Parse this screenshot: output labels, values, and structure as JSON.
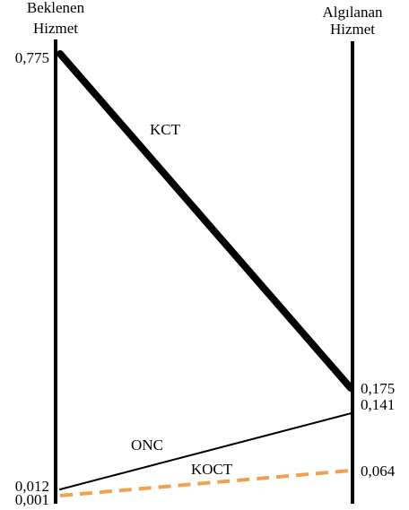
{
  "chart_data": {
    "type": "line",
    "left_axis": {
      "title_lines": [
        "Beklenen",
        "Hizmet"
      ]
    },
    "right_axis": {
      "title_lines": [
        "Algılanan",
        "Hizmet"
      ]
    },
    "series": [
      {
        "name": "KCT",
        "left_value": 0.775,
        "right_value": 0.175,
        "left_label": "0,775",
        "right_label": "0,175",
        "color": "#000000",
        "style": "solid",
        "weight": "thick"
      },
      {
        "name": "ONC",
        "left_value": 0.012,
        "right_value": 0.141,
        "left_label": "0,012",
        "right_label": "0,141",
        "color": "#000000",
        "style": "solid",
        "weight": "thin"
      },
      {
        "name": "KOCT",
        "left_value": 0.001,
        "right_value": 0.064,
        "left_label": "0,001",
        "right_label": "0,064",
        "color": "#f0a050",
        "style": "dashed",
        "weight": "medium"
      }
    ]
  }
}
